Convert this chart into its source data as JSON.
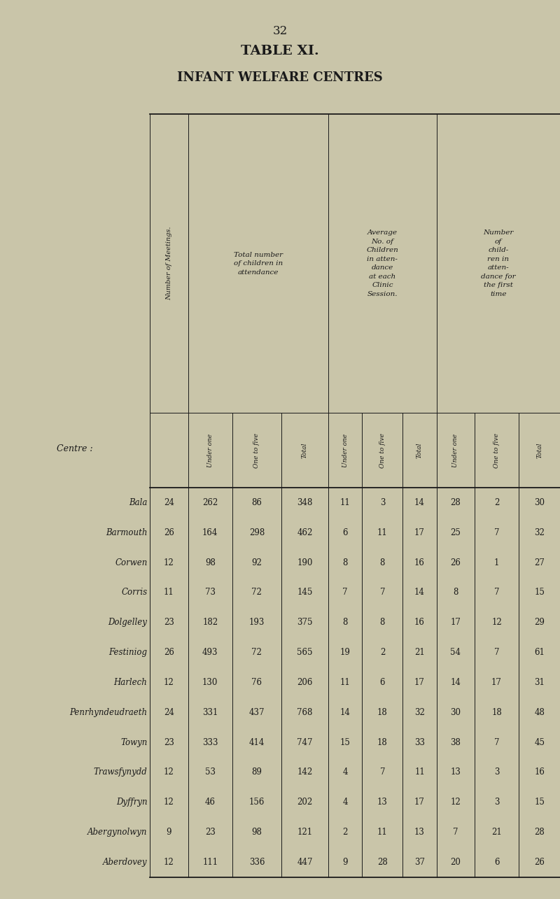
{
  "page_number": "32",
  "title1": "TABLE XI.",
  "title2": "INFANT WELFARE CENTRES",
  "bg_color": "#c9c5a9",
  "text_color": "#1a1a1a",
  "centre_label": "Centre :",
  "num_meetings_label": "Number of Meetings.",
  "group_labels": [
    "Total number\nof children in\nattendance",
    "Average\nNo. of\nChildren\nin atten-\ndance\nat each\nClinic\nSession.",
    "Number\nof\nchild-\nren in\natten-\ndance for\nthe first\ntime"
  ],
  "sub_cols": [
    "Under one",
    "One to five",
    "Total",
    "Under one",
    "One to five",
    "Total",
    "Under one",
    "One to five",
    "Total"
  ],
  "rows": [
    [
      "Bala",
      24,
      262,
      86,
      348,
      11,
      3,
      14,
      28,
      2,
      30
    ],
    [
      "Barmouth",
      26,
      164,
      298,
      462,
      6,
      11,
      17,
      25,
      7,
      32
    ],
    [
      "Corwen",
      12,
      98,
      92,
      190,
      8,
      8,
      16,
      26,
      1,
      27
    ],
    [
      "Corris",
      11,
      73,
      72,
      145,
      7,
      7,
      14,
      8,
      7,
      15
    ],
    [
      "Dolgelley",
      23,
      182,
      193,
      375,
      8,
      8,
      16,
      17,
      12,
      29
    ],
    [
      "Festiniog",
      26,
      493,
      72,
      565,
      19,
      2,
      21,
      54,
      7,
      61
    ],
    [
      "Harlech",
      12,
      130,
      76,
      206,
      11,
      6,
      17,
      14,
      17,
      31
    ],
    [
      "Penrhyndeudraeth",
      24,
      331,
      437,
      768,
      14,
      18,
      32,
      30,
      18,
      48
    ],
    [
      "Towyn",
      23,
      333,
      414,
      747,
      15,
      18,
      33,
      38,
      7,
      45
    ],
    [
      "Trawsfynydd",
      12,
      53,
      89,
      142,
      4,
      7,
      11,
      13,
      3,
      16
    ],
    [
      "Dyffryn",
      12,
      46,
      156,
      202,
      4,
      13,
      17,
      12,
      3,
      15
    ],
    [
      "Abergynolwyn",
      9,
      23,
      98,
      121,
      2,
      11,
      13,
      7,
      21,
      28
    ],
    [
      "Aberdovey",
      12,
      111,
      336,
      447,
      9,
      28,
      37,
      20,
      6,
      26
    ]
  ]
}
